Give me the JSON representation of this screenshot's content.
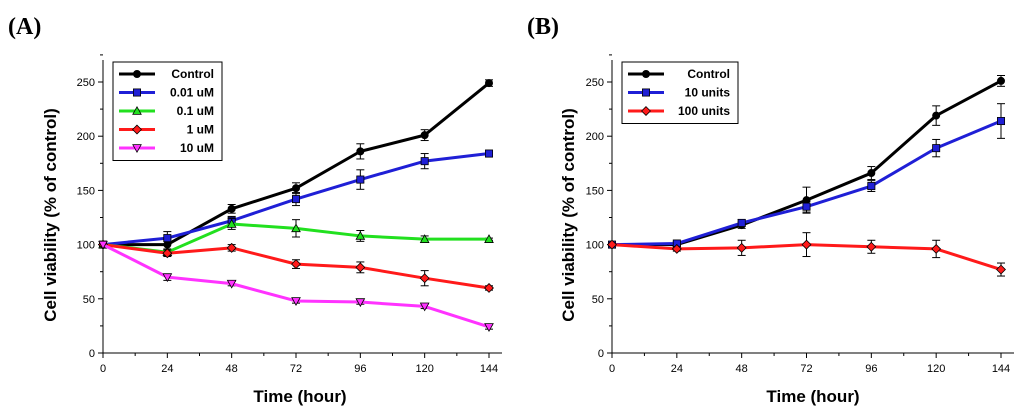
{
  "chart_data": [
    {
      "type": "line",
      "panel_label": "(A)",
      "xlabel": "Time (hour)",
      "ylabel": "Cell viability (% of control)",
      "x": [
        0,
        24,
        48,
        72,
        96,
        120,
        144
      ],
      "xticks": [
        "0",
        "24",
        "48",
        "72",
        "96",
        "120",
        "144"
      ],
      "yticks": [
        "0",
        "50",
        "100",
        "150",
        "200",
        "250"
      ],
      "xlim": [
        0,
        150
      ],
      "ylim": [
        0,
        275
      ],
      "grid": false,
      "legend_position": "top-left",
      "series": [
        {
          "name": "Control",
          "color": "#000000",
          "marker": "circle",
          "values": [
            100,
            100,
            133,
            152,
            186,
            201,
            249
          ],
          "errors": [
            0,
            5,
            4,
            5,
            7,
            5,
            3
          ]
        },
        {
          "name": "0.01 uM",
          "color": "#1f1fd6",
          "marker": "square",
          "values": [
            100,
            106,
            122,
            142,
            160,
            177,
            184
          ],
          "errors": [
            0,
            6,
            4,
            6,
            9,
            7,
            2
          ]
        },
        {
          "name": "0.1 uM",
          "color": "#22e01f",
          "marker": "triangle-up",
          "values": [
            100,
            93,
            119,
            115,
            108,
            105,
            105
          ],
          "errors": [
            0,
            3,
            5,
            8,
            5,
            3,
            1
          ]
        },
        {
          "name": "1 uM",
          "color": "#ff1a1a",
          "marker": "diamond",
          "values": [
            100,
            92,
            97,
            82,
            79,
            69,
            60
          ],
          "errors": [
            0,
            3,
            3,
            4,
            5,
            7,
            2
          ]
        },
        {
          "name": "10 uM",
          "color": "#ff33ff",
          "marker": "triangle-down",
          "values": [
            100,
            70,
            64,
            48,
            47,
            43,
            24
          ],
          "errors": [
            0,
            3,
            2,
            2,
            2,
            2,
            2
          ]
        }
      ]
    },
    {
      "type": "line",
      "panel_label": "(B)",
      "xlabel": "Time (hour)",
      "ylabel": "Cell viability (% of control)",
      "x": [
        0,
        24,
        48,
        72,
        96,
        120,
        144
      ],
      "xticks": [
        "0",
        "24",
        "48",
        "72",
        "96",
        "120",
        "144"
      ],
      "yticks": [
        "0",
        "50",
        "100",
        "150",
        "200",
        "250"
      ],
      "xlim": [
        0,
        150
      ],
      "ylim": [
        0,
        275
      ],
      "grid": false,
      "legend_position": "top-left",
      "series": [
        {
          "name": "Control",
          "color": "#000000",
          "marker": "circle",
          "values": [
            100,
            100,
            118,
            141,
            166,
            219,
            251
          ],
          "errors": [
            0,
            2,
            3,
            12,
            6,
            9,
            5
          ]
        },
        {
          "name": "10 units",
          "color": "#1f1fd6",
          "marker": "square",
          "values": [
            100,
            101,
            120,
            135,
            154,
            189,
            214
          ],
          "errors": [
            0,
            2,
            3,
            5,
            5,
            8,
            16
          ]
        },
        {
          "name": "100 units",
          "color": "#ff1a1a",
          "marker": "diamond",
          "values": [
            100,
            96,
            97,
            100,
            98,
            96,
            77
          ],
          "errors": [
            0,
            2,
            7,
            11,
            6,
            8,
            6
          ]
        }
      ]
    }
  ]
}
